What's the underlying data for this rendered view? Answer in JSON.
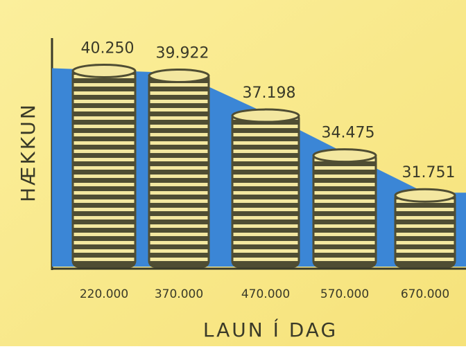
{
  "chart_data": {
    "type": "bar",
    "x_label": "LAUN Í DAG",
    "y_label": "HÆKKUN",
    "categories": [
      "220.000",
      "370.000",
      "470.000",
      "570.000",
      "670.000"
    ],
    "values": [
      40250,
      39922,
      37198,
      34475,
      31751
    ],
    "value_labels": [
      "40.250",
      "39.922",
      "37.198",
      "34.475",
      "31.751"
    ],
    "color": "#4f4d33",
    "area_color": "#3b86d6",
    "ylim": [
      26700,
      41600
    ]
  }
}
